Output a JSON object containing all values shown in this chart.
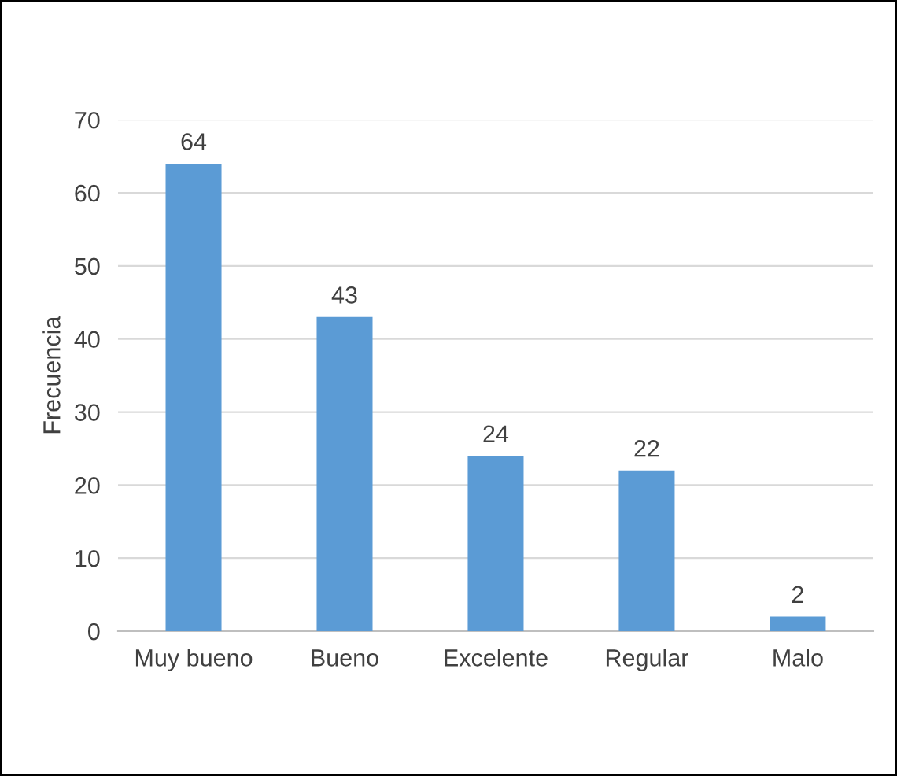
{
  "chart_data": {
    "type": "bar",
    "ylabel": "Frecuencia",
    "categories": [
      "Muy bueno",
      "Bueno",
      "Excelente",
      "Regular",
      "Malo"
    ],
    "values": [
      64,
      43,
      24,
      22,
      2
    ],
    "color": "#5b9bd5",
    "ylim": [
      0,
      70
    ],
    "yticks": [
      0,
      10,
      20,
      30,
      40,
      50,
      60,
      70
    ],
    "grid": "y",
    "data_labels": true
  }
}
